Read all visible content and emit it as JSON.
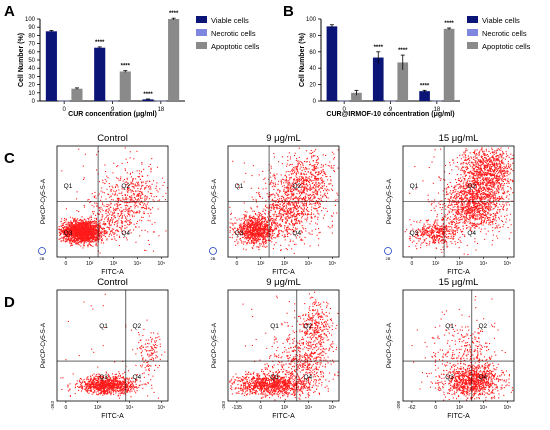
{
  "panel_labels": [
    "A",
    "B",
    "C",
    "D"
  ],
  "colors": {
    "viable": "#0a1577",
    "necrotic": "#7e86e0",
    "apoptotic": "#8a8a8a",
    "dots": "#ff1a1a"
  },
  "chart_data": [
    {
      "type": "bar",
      "panel": "A",
      "ylabel": "Cell Number (%)",
      "xlabel": "CUR concentration (μg/ml)",
      "ylim": [
        0,
        100
      ],
      "yticks": [
        0,
        10,
        20,
        30,
        40,
        50,
        60,
        70,
        80,
        90,
        100
      ],
      "categories": [
        "0",
        "9",
        "18"
      ],
      "legend": [
        "Viable cells",
        "Necrotic cells",
        "Apoptotic cells"
      ],
      "legend_position": "right",
      "series": [
        {
          "name": "Viable cells",
          "values": [
            85,
            65,
            2
          ],
          "errors": [
            1,
            1,
            0.5
          ],
          "stars": [
            "",
            "****",
            "****"
          ]
        },
        {
          "name": "Necrotic cells",
          "values": [
            0.3,
            0.3,
            0.3
          ],
          "errors": [
            0,
            0,
            0
          ],
          "stars": [
            "",
            "",
            ""
          ]
        },
        {
          "name": "Apoptotic cells",
          "values": [
            15,
            36,
            100
          ],
          "errors": [
            1,
            1,
            1
          ],
          "stars": [
            "",
            "****",
            "****"
          ]
        }
      ]
    },
    {
      "type": "bar",
      "panel": "B",
      "ylabel": "Cell Number (%)",
      "xlabel": "CUR@IRMOF-10 concentration (μg/ml)",
      "ylim": [
        0,
        100
      ],
      "yticks": [
        0,
        20,
        40,
        60,
        80,
        100
      ],
      "categories": [
        "0",
        "9",
        "18"
      ],
      "legend": [
        "Viable cells",
        "Necrotic cells",
        "Apoptotic cells"
      ],
      "legend_position": "right",
      "series": [
        {
          "name": "Viable cells",
          "values": [
            91,
            53,
            12
          ],
          "errors": [
            2,
            7,
            1
          ],
          "stars": [
            "",
            "****",
            "****"
          ]
        },
        {
          "name": "Necrotic cells",
          "values": [
            0.3,
            0.3,
            0.3
          ],
          "errors": [
            0,
            0,
            0
          ],
          "stars": [
            "",
            "",
            ""
          ]
        },
        {
          "name": "Apoptotic cells",
          "values": [
            10,
            47,
            88
          ],
          "errors": [
            3,
            9,
            1
          ],
          "stars": [
            "",
            "****",
            "****"
          ]
        }
      ]
    }
  ],
  "flow_rows": [
    {
      "panel": "C",
      "plots": [
        {
          "title": "Control",
          "xlabel": "FITC-A",
          "ylabel": "PerCP-Cy5-5-A",
          "quadrants": [
            "Q1",
            "Q2",
            "Q3",
            "Q4"
          ],
          "xticks": [
            "0",
            "10²",
            "10³",
            "10⁴",
            "10⁵"
          ],
          "gate_marker": "2B",
          "dist": "control_c"
        },
        {
          "title": "9 μg/mL",
          "xlabel": "FITC-A",
          "ylabel": "PerCP-Cy5-5-A",
          "quadrants": [
            "Q1",
            "Q2",
            "Q3",
            "Q4"
          ],
          "xticks": [
            "0",
            "10²",
            "10³",
            "10⁴",
            "10⁵"
          ],
          "gate_marker": "2B",
          "dist": "mid_c"
        },
        {
          "title": "15 μg/mL",
          "xlabel": "FITC-A",
          "ylabel": "PerCP-Cy5-5-A",
          "quadrants": [
            "Q1",
            "Q2",
            "Q3",
            "Q4"
          ],
          "xticks": [
            "0",
            "10²",
            "10³",
            "10⁴",
            "10⁵"
          ],
          "gate_marker": "2B",
          "dist": "high_c"
        }
      ]
    },
    {
      "panel": "D",
      "plots": [
        {
          "title": "Control",
          "xlabel": "FITC-A",
          "ylabel": "PerCP-Cy5-5-A",
          "quadrants": [
            "Q1",
            "Q2",
            "Q3",
            "Q4"
          ],
          "xticks": [
            "0",
            "10³",
            "10⁴",
            "10⁵"
          ],
          "yneg": "-263",
          "dist": "control_d"
        },
        {
          "title": "9 μg/mL",
          "xlabel": "FITC-A",
          "ylabel": "PerCP-Cy5-5-A",
          "quadrants": [
            "Q1",
            "Q2",
            "Q3",
            "Q4"
          ],
          "xticks": [
            "-135",
            "0",
            "10³",
            "10⁴",
            "10⁵"
          ],
          "yneg": "-263",
          "dist": "mid_d"
        },
        {
          "title": "15 μg/mL",
          "xlabel": "FITC-A",
          "ylabel": "PerCP-Cy5-5-A",
          "quadrants": [
            "Q1",
            "Q2",
            "Q3",
            "Q4"
          ],
          "xticks": [
            "-62",
            "0",
            "10³",
            "10⁴",
            "10⁵"
          ],
          "yneg": "-208",
          "dist": "high_d"
        }
      ]
    }
  ]
}
